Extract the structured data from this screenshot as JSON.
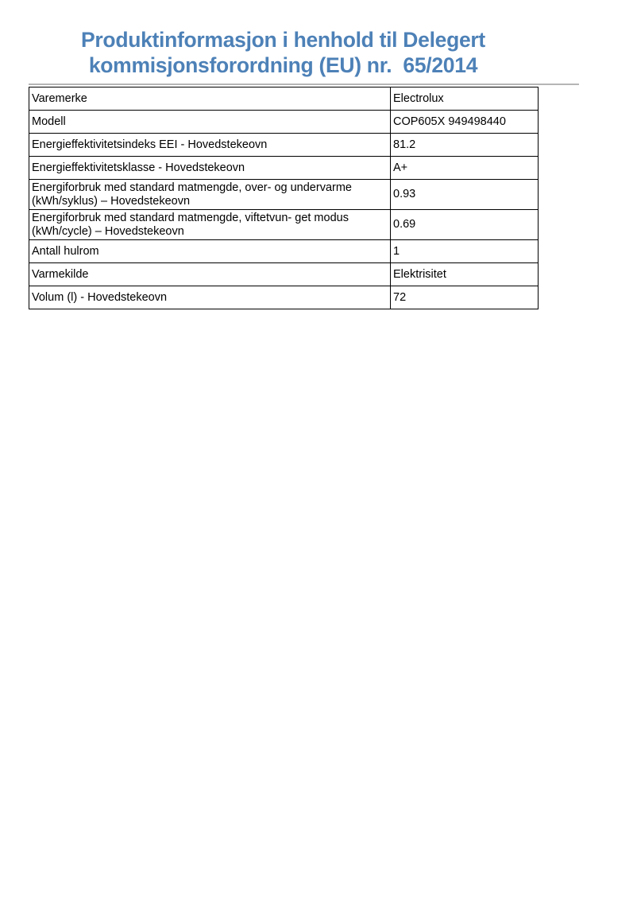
{
  "header": {
    "title_line1": "Produktinformasjon i henhold til Delegert",
    "title_line2": "kommisjonsforordning (EU) nr.  65/2014",
    "title_color": "#4d81b7",
    "rule_color": "#b5b5b5"
  },
  "table": {
    "rows": [
      {
        "label": "Varemerke",
        "value": "Electrolux"
      },
      {
        "label": "Modell",
        "value": "COP605X 949498440"
      },
      {
        "label": "Energieffektivitetsindeks EEI - Hovedstekeovn",
        "value": "81.2"
      },
      {
        "label": "Energieffektivitetsklasse - Hovedstekeovn",
        "value": "A+"
      },
      {
        "label": "Energiforbruk med standard matmengde, over- og undervarme (kWh/syklus) – Hovedstekeovn",
        "value": "0.93"
      },
      {
        "label": "Energiforbruk med standard matmengde, viftetvun- get modus (kWh/cycle) – Hovedstekeovn",
        "value": "0.69"
      },
      {
        "label": "Antall hulrom",
        "value": "1"
      },
      {
        "label": "Varmekilde",
        "value": "Elektrisitet"
      },
      {
        "label": "Volum (l) - Hovedstekeovn",
        "value": "72"
      }
    ]
  }
}
